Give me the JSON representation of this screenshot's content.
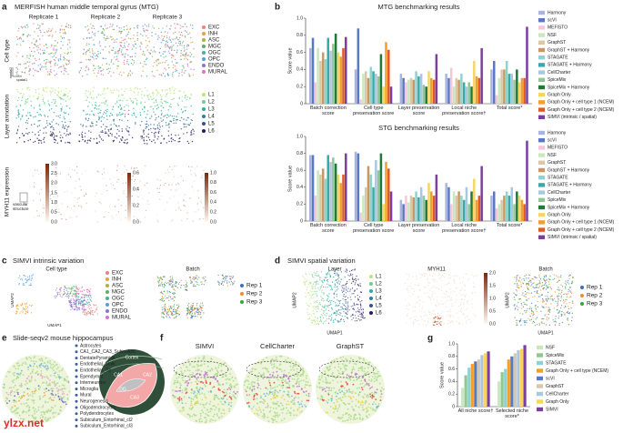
{
  "panel_labels": [
    "a",
    "b",
    "c",
    "d",
    "e",
    "f",
    "g"
  ],
  "panel_a": {
    "title": "MERFISH human middle temporal gyrus (MTG)",
    "replicates": [
      "Replicate 1",
      "Replicate 2",
      "Replicate 3"
    ],
    "rows": [
      "Cell type",
      "Layer annotation",
      "MYH11 expression"
    ],
    "cell_types": [
      "EXC",
      "INH",
      "ASC",
      "MGC",
      "OGC",
      "OPC",
      "ENDO",
      "MURAL"
    ],
    "cell_type_colors": [
      "#f08080",
      "#e8a040",
      "#b0b040",
      "#60b060",
      "#40b0a0",
      "#50a0e0",
      "#9070d0",
      "#e070c0"
    ],
    "layers": [
      "L1",
      "L2",
      "L3",
      "L4",
      "L5",
      "L6"
    ],
    "layer_colors": [
      "#bde37a",
      "#6ccf8a",
      "#2ab0a0",
      "#2f7fa0",
      "#3b4f8c",
      "#2a1a5e"
    ],
    "spatial_axes": [
      "spatial1",
      "spatial2"
    ],
    "annotation": "vascular structure",
    "colorbars": [
      [
        "3.0",
        "2.5",
        "2.0",
        "1.5",
        "1.0",
        "0.5",
        "0.0"
      ],
      [
        "0.6",
        "0.4",
        "0.2",
        "0.0"
      ],
      [
        "1.0",
        "0.8",
        "0.6",
        "0.4",
        "0.2",
        "0.0"
      ]
    ]
  },
  "chart_data": [
    {
      "type": "bar",
      "title": "MTG benchmarking results",
      "ylabel": "Score value",
      "categories": [
        "Batch correction score",
        "Cell type preservation score",
        "Layer preservation score",
        "Local niche preservation score†",
        "Total score*"
      ],
      "ylim": [
        0,
        1
      ],
      "yticks": [
        0,
        0.2,
        0.4,
        0.6,
        0.8,
        {
          "value": 1,
          "label": "1.0"
        }
      ],
      "legend": "right",
      "grid": false,
      "series": [
        {
          "name": "Harmony",
          "color": "#aab4e0",
          "values": [
            0.65,
            0.4,
            0.35,
            0.35,
            0.4
          ]
        },
        {
          "name": "scVI",
          "color": "#5a78c8",
          "values": [
            0.77,
            0.88,
            0.3,
            0.3,
            0.5
          ]
        },
        {
          "name": "MEFISTO",
          "color": "#f7c6d6",
          "values": [
            0.25,
            0.05,
            0.25,
            0.42,
            0.1
          ]
        },
        {
          "name": "NSF",
          "color": "#c9e8c0",
          "values": [
            0.65,
            0.35,
            0.28,
            0.2,
            0.3
          ]
        },
        {
          "name": "GraphST",
          "color": "#d9c8a8",
          "values": [
            0.5,
            0.38,
            0.3,
            0.3,
            0.4
          ]
        },
        {
          "name": "GraphST + Harmony",
          "color": "#c89860",
          "values": [
            0.6,
            0.3,
            0.28,
            0.28,
            0.4
          ]
        },
        {
          "name": "STAGATE",
          "color": "#8fd3d0",
          "values": [
            0.52,
            0.43,
            0.38,
            0.35,
            0.5
          ]
        },
        {
          "name": "STAGATE + Harmony",
          "color": "#3aa8a8",
          "values": [
            0.77,
            0.38,
            0.32,
            0.25,
            0.35
          ]
        },
        {
          "name": "CellCharter",
          "color": "#a7c8e0",
          "values": [
            0.62,
            0.35,
            0.35,
            0.2,
            0.35
          ]
        },
        {
          "name": "SpiceMix",
          "color": "#8fc98f",
          "values": [
            0.7,
            0.32,
            0.22,
            0.25,
            0.28
          ]
        },
        {
          "name": "SpiceMix + Harmony",
          "color": "#1f7a3a",
          "values": [
            0.82,
            0.58,
            0.2,
            0.2,
            0.4
          ]
        },
        {
          "name": "Graph Only",
          "color": "#f7d560",
          "values": [
            0.6,
            0.2,
            0.38,
            0.5,
            0.25
          ]
        },
        {
          "name": "Graph Only + cell type 1 (NCEM)",
          "color": "#f0a030",
          "values": [
            0.55,
            0.72,
            0.3,
            0.32,
            0.3
          ]
        },
        {
          "name": "Graph Only + cell type 2 (NCEM)",
          "color": "#e05a20",
          "values": [
            0.65,
            0.63,
            0.28,
            0.3,
            0.3
          ]
        },
        {
          "name": "SIMVI (intrinsic / spatial)",
          "color": "#7b3fa0",
          "values": [
            0.78,
            0.2,
            0.58,
            0.65,
            0.9
          ]
        }
      ]
    },
    {
      "type": "bar",
      "title": "STG benchmarking results",
      "ylabel": "Score value",
      "categories": [
        "Batch correction score",
        "Cell type preservation score",
        "Layer preservation score",
        "Local niche preservation score†",
        "Total score*"
      ],
      "ylim": [
        0,
        1
      ],
      "yticks": [
        0,
        0.2,
        0.4,
        0.6,
        0.8,
        {
          "value": 1,
          "label": "1.0"
        }
      ],
      "legend": "right",
      "grid": false,
      "series": [
        {
          "name": "Harmony",
          "color": "#aab4e0",
          "values": [
            0.78,
            0.82,
            0.25,
            0.45,
            0.3
          ]
        },
        {
          "name": "scVI",
          "color": "#5a78c8",
          "values": [
            0.78,
            0.8,
            0.2,
            0.4,
            0.35
          ]
        },
        {
          "name": "MEFISTO",
          "color": "#f7c6d6",
          "values": [
            0.3,
            0.1,
            0.3,
            0.2,
            0.15
          ]
        },
        {
          "name": "NSF",
          "color": "#c9e8c0",
          "values": [
            0.6,
            0.3,
            0.22,
            0.35,
            0.2
          ]
        },
        {
          "name": "GraphST",
          "color": "#d9c8a8",
          "values": [
            0.55,
            0.4,
            0.3,
            0.3,
            0.25
          ]
        },
        {
          "name": "GraphST + Harmony",
          "color": "#c89860",
          "values": [
            0.62,
            0.65,
            0.28,
            0.35,
            0.3
          ]
        },
        {
          "name": "STAGATE",
          "color": "#8fd3d0",
          "values": [
            0.5,
            0.55,
            0.35,
            0.3,
            0.35
          ]
        },
        {
          "name": "STAGATE + Harmony",
          "color": "#3aa8a8",
          "values": [
            0.78,
            0.4,
            0.28,
            0.25,
            0.3
          ]
        },
        {
          "name": "CellCharter",
          "color": "#a7c8e0",
          "values": [
            0.7,
            0.72,
            0.4,
            0.4,
            0.4
          ]
        },
        {
          "name": "SpiceMix",
          "color": "#8fc98f",
          "values": [
            0.75,
            0.6,
            0.3,
            0.2,
            0.2
          ]
        },
        {
          "name": "SpiceMix + Harmony",
          "color": "#1f7a3a",
          "values": [
            0.68,
            0.8,
            0.25,
            0.35,
            0.35
          ]
        },
        {
          "name": "Graph Only",
          "color": "#f7d560",
          "values": [
            0.55,
            0.2,
            0.45,
            0.5,
            0.3
          ]
        },
        {
          "name": "Graph Only + cell type 1 (NCEM)",
          "color": "#f0a030",
          "values": [
            0.45,
            0.7,
            0.35,
            0.25,
            0.25
          ]
        },
        {
          "name": "Graph Only + cell type 2 (NCEM)",
          "color": "#e05a20",
          "values": [
            0.55,
            0.62,
            0.3,
            0.3,
            0.2
          ]
        },
        {
          "name": "SIMVI (intrinsic / spatial)",
          "color": "#7b3fa0",
          "values": [
            0.8,
            0.35,
            0.55,
            0.65,
            0.95
          ]
        }
      ]
    },
    {
      "type": "bar",
      "ylabel": "Score value",
      "categories": [
        "All niche score†",
        "Selected niche score*"
      ],
      "ylim": [
        0,
        1
      ],
      "yticks": [
        0,
        0.2,
        0.4,
        0.6,
        0.8,
        {
          "value": 1,
          "label": "1.0"
        }
      ],
      "legend": "right",
      "grid": false,
      "series": [
        {
          "name": "NSF",
          "color": "#c9e8c0",
          "values": [
            0.3,
            0.4
          ]
        },
        {
          "name": "SpiceMix",
          "color": "#8fc98f",
          "values": [
            0.5,
            0.55
          ]
        },
        {
          "name": "STAGATE",
          "color": "#8fd3d0",
          "values": [
            0.62,
            0.6
          ]
        },
        {
          "name": "Graph Only + cell type (NCEM)",
          "color": "#f0a030",
          "values": [
            0.68,
            0.75
          ]
        },
        {
          "name": "scVI",
          "color": "#5a78c8",
          "values": [
            0.72,
            0.8
          ]
        },
        {
          "name": "GraphST",
          "color": "#d9c8a8",
          "values": [
            0.75,
            0.85
          ]
        },
        {
          "name": "CellCharter",
          "color": "#a7c8e0",
          "values": [
            0.82,
            0.9
          ]
        },
        {
          "name": "Graph Only",
          "color": "#f7d560",
          "values": [
            0.85,
            0.92
          ]
        },
        {
          "name": "SIMVI",
          "color": "#7b3fa0",
          "values": [
            0.88,
            0.98
          ]
        }
      ]
    }
  ],
  "panel_c": {
    "title": "SIMVI intrinsic variation",
    "subtitles": [
      "Cell type",
      "Batch"
    ],
    "reps": [
      "Rep 1",
      "Rep 2",
      "Rep 3"
    ],
    "rep_colors": [
      "#3a6fc0",
      "#f08a30",
      "#3aa040"
    ],
    "axes": [
      "UMAP1",
      "UMAP2"
    ]
  },
  "panel_d": {
    "title": "SIMVI spatial variation",
    "subtitles": [
      "Layer",
      "MYH11",
      "Batch"
    ],
    "colorbar": [
      "2.0",
      "1.5",
      "1.0",
      "0.5",
      "0.0"
    ],
    "axes": [
      "UMAP1",
      "UMAP2"
    ]
  },
  "panel_e": {
    "title": "Slide-seqv2 mouse hippocampus",
    "cell_types": [
      "Astrocytes",
      "CA1_CA2_CA3_Subiculum",
      "DentatePyramids",
      "Endothelial_Stalk",
      "Endothelial_Tip",
      "Ependymal",
      "Interneurons",
      "Microglia",
      "Mural",
      "Neurogenesis",
      "Oligodendrocytes",
      "Polydendrocytes",
      "Subiculum_Entorhinal_cl2",
      "Subiculum_Entorhinal_cl3"
    ],
    "regions": [
      "Cortex",
      "CA1",
      "CA2",
      "CA3",
      "DG"
    ],
    "watermark": "ylzx.net"
  },
  "panel_f": {
    "titles": [
      "SIMVI",
      "CellCharter",
      "GraphST"
    ]
  }
}
